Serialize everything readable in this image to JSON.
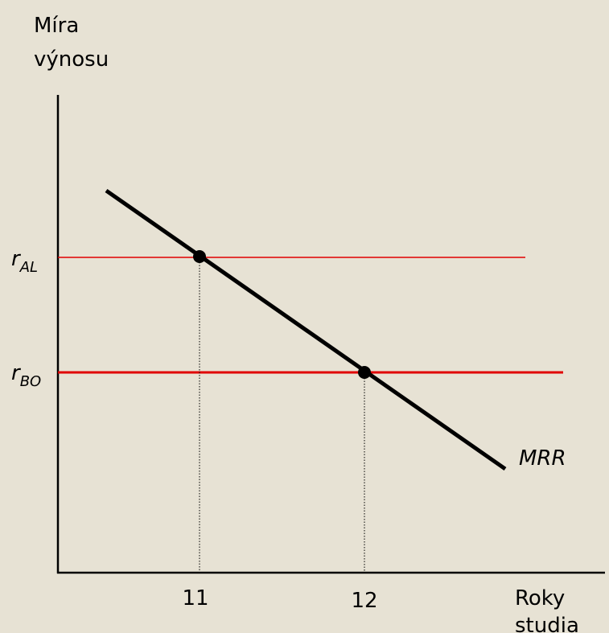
{
  "y_axis_label": [
    "Míra",
    "výnosu"
  ],
  "x_axis_label": [
    "Roky",
    "studia"
  ],
  "x_tick_labels": [
    "11",
    "12"
  ],
  "rates": [
    {
      "symbol": "r",
      "subscript": "AL"
    },
    {
      "symbol": "r",
      "subscript": "BO"
    }
  ],
  "curve_label": "MRR"
}
